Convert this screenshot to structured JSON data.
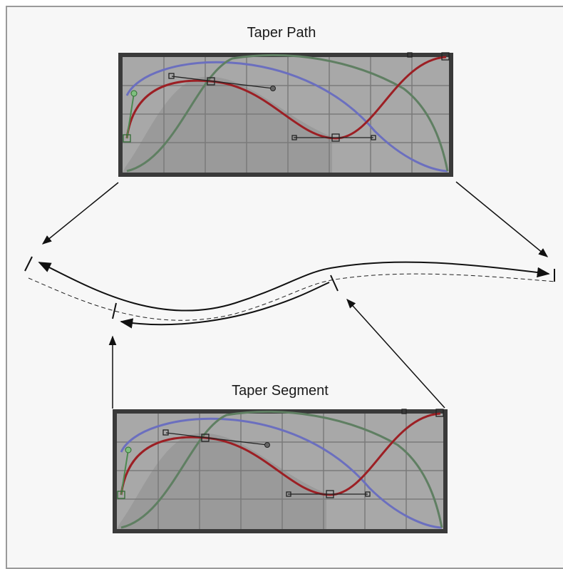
{
  "labels": {
    "taper_path": "Taper Path",
    "taper_segment": "Taper Segment"
  },
  "colors": {
    "panel_bg": "#a9a9a9",
    "panel_dark": "#8f8f8f",
    "panel_border": "#3a3a3a",
    "curve_blue": "#6b6fbf",
    "curve_green": "#5f7f62",
    "curve_red": "#9c1f24"
  }
}
